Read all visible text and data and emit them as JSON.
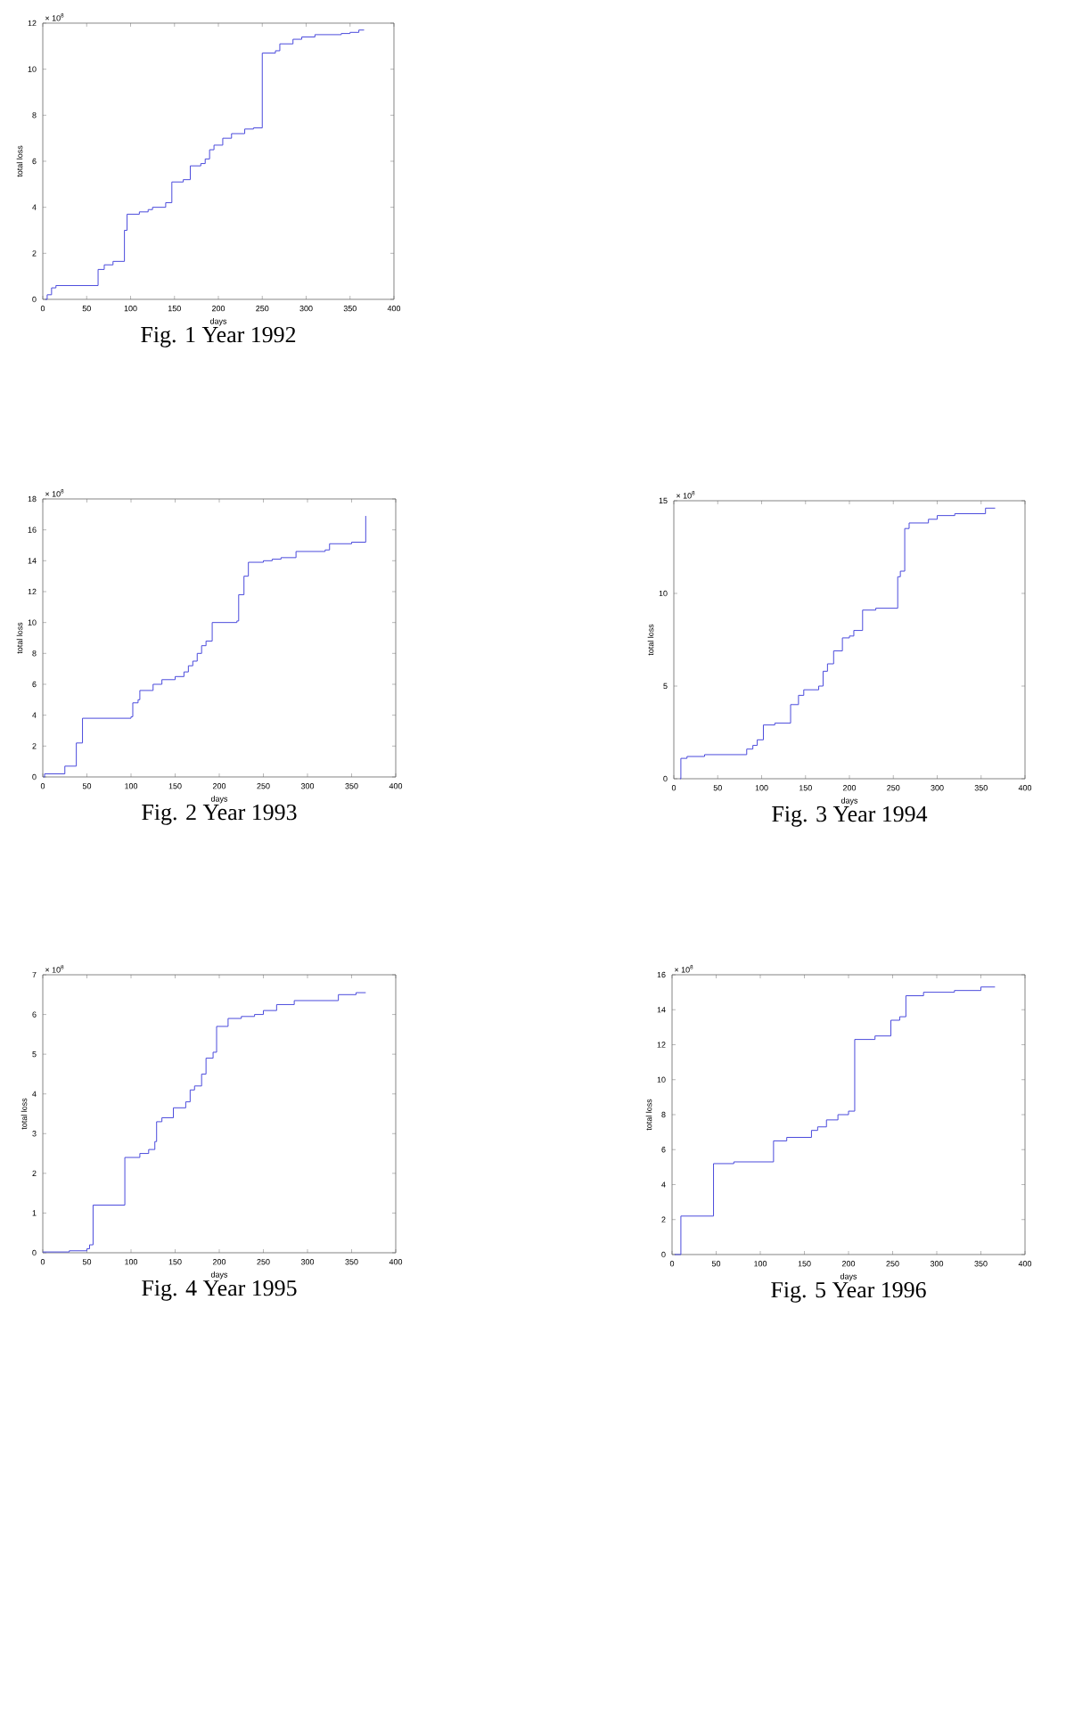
{
  "chart_data": [
    {
      "type": "step",
      "title": "Fig. 1  Year 1992",
      "xlabel": "days",
      "ylabel": "total loss",
      "annotations": [
        "× 10$^{8}$"
      ],
      "color": "#4a4adc",
      "x": [
        3,
        5,
        10,
        15,
        63,
        70,
        80,
        93,
        96,
        110,
        120,
        125,
        140,
        147,
        160,
        168,
        180,
        185,
        190,
        195,
        205,
        215,
        230,
        240,
        250,
        265,
        270,
        285,
        295,
        310,
        340,
        350,
        360,
        366
      ],
      "values": [
        0,
        0.2,
        0.5,
        0.6,
        1.3,
        1.5,
        1.65,
        3.0,
        3.7,
        3.8,
        3.9,
        4.0,
        4.2,
        5.1,
        5.2,
        5.8,
        5.9,
        6.1,
        6.5,
        6.7,
        7.0,
        7.2,
        7.4,
        7.45,
        10.7,
        10.8,
        11.1,
        11.3,
        11.4,
        11.5,
        11.55,
        11.6,
        11.7,
        11.7
      ],
      "xlim": [
        0,
        400
      ],
      "ylim": [
        0,
        12
      ],
      "xticks": [
        0,
        50,
        100,
        150,
        200,
        250,
        300,
        350,
        400
      ],
      "yticks": [
        0,
        2,
        4,
        6,
        8,
        10,
        12
      ]
    },
    {
      "type": "step",
      "title": "Fig. 2  Year 1993",
      "xlabel": "days",
      "ylabel": "total loss",
      "annotations": [
        "× 10$^{8}$"
      ],
      "color": "#4a4adc",
      "x": [
        1,
        2,
        25,
        38,
        45,
        100,
        102,
        108,
        110,
        125,
        135,
        150,
        160,
        165,
        170,
        175,
        180,
        185,
        192,
        220,
        222,
        228,
        233,
        250,
        260,
        270,
        287,
        320,
        325,
        350,
        366
      ],
      "values": [
        0,
        0.2,
        0.7,
        2.2,
        3.8,
        3.9,
        4.8,
        5.0,
        5.6,
        6.0,
        6.3,
        6.5,
        6.8,
        7.2,
        7.5,
        8.0,
        8.5,
        8.8,
        10.0,
        10.1,
        11.8,
        13.0,
        13.9,
        14.0,
        14.1,
        14.2,
        14.6,
        14.7,
        15.1,
        15.2,
        16.9
      ],
      "xlim": [
        0,
        400
      ],
      "ylim": [
        0,
        18
      ],
      "xticks": [
        0,
        50,
        100,
        150,
        200,
        250,
        300,
        350,
        400
      ],
      "yticks": [
        0,
        2,
        4,
        6,
        8,
        10,
        12,
        14,
        16,
        18
      ]
    },
    {
      "type": "step",
      "title": "Fig. 3  Year 1994",
      "xlabel": "days",
      "ylabel": "total loss",
      "annotations": [
        "× 10$^{8}$"
      ],
      "color": "#4a4adc",
      "x": [
        7,
        8,
        15,
        35,
        83,
        90,
        95,
        102,
        115,
        133,
        142,
        148,
        165,
        170,
        175,
        182,
        192,
        200,
        205,
        215,
        230,
        255,
        258,
        263,
        268,
        290,
        300,
        320,
        355,
        366
      ],
      "values": [
        0,
        1.1,
        1.2,
        1.3,
        1.6,
        1.8,
        2.1,
        2.9,
        3.0,
        4.0,
        4.5,
        4.8,
        5.0,
        5.8,
        6.2,
        6.9,
        7.6,
        7.7,
        8.0,
        9.1,
        9.2,
        10.9,
        11.2,
        13.5,
        13.8,
        14.0,
        14.2,
        14.3,
        14.6,
        14.6
      ],
      "xlim": [
        0,
        400
      ],
      "ylim": [
        0,
        15
      ],
      "xticks": [
        0,
        50,
        100,
        150,
        200,
        250,
        300,
        350,
        400
      ],
      "yticks": [
        0,
        5,
        10,
        15
      ]
    },
    {
      "type": "step",
      "title": "Fig. 4  Year 1995",
      "xlabel": "days",
      "ylabel": "total loss",
      "annotations": [
        "× 10$^{8}$"
      ],
      "color": "#4a4adc",
      "x": [
        0,
        30,
        50,
        53,
        57,
        93,
        110,
        120,
        127,
        129,
        135,
        148,
        162,
        167,
        172,
        180,
        185,
        193,
        197,
        210,
        225,
        240,
        250,
        265,
        285,
        335,
        355,
        366
      ],
      "values": [
        0.02,
        0.05,
        0.1,
        0.2,
        1.2,
        2.4,
        2.5,
        2.6,
        2.8,
        3.3,
        3.4,
        3.65,
        3.8,
        4.1,
        4.2,
        4.5,
        4.9,
        5.05,
        5.7,
        5.9,
        5.95,
        6.0,
        6.1,
        6.25,
        6.35,
        6.5,
        6.55,
        6.55
      ],
      "xlim": [
        0,
        400
      ],
      "ylim": [
        0,
        7
      ],
      "xticks": [
        0,
        50,
        100,
        150,
        200,
        250,
        300,
        350,
        400
      ],
      "yticks": [
        0,
        1,
        2,
        3,
        4,
        5,
        6,
        7
      ]
    },
    {
      "type": "step",
      "title": "Fig. 5  Year 1996",
      "xlabel": "days",
      "ylabel": "total loss",
      "annotations": [
        "× 10$^{8}$"
      ],
      "color": "#4a4adc",
      "x": [
        3,
        10,
        47,
        70,
        115,
        130,
        158,
        165,
        175,
        188,
        200,
        207,
        230,
        248,
        258,
        265,
        285,
        320,
        350,
        366
      ],
      "values": [
        0,
        2.2,
        5.2,
        5.3,
        6.5,
        6.7,
        7.1,
        7.3,
        7.7,
        8.0,
        8.2,
        12.3,
        12.5,
        13.4,
        13.6,
        14.8,
        15.0,
        15.1,
        15.3,
        15.3
      ],
      "xlim": [
        0,
        400
      ],
      "ylim": [
        0,
        16
      ],
      "xticks": [
        0,
        50,
        100,
        150,
        200,
        250,
        300,
        350,
        400
      ],
      "yticks": [
        0,
        2,
        4,
        6,
        8,
        10,
        12,
        14,
        16
      ]
    }
  ]
}
